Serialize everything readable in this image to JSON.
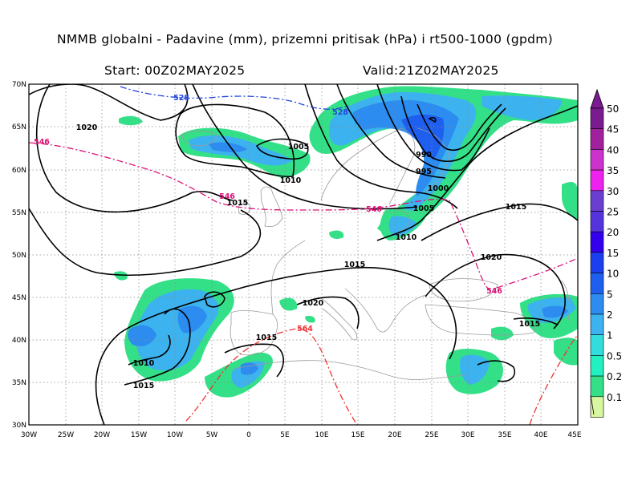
{
  "title": "NMMB globalni - Padavine (mm), prizemni pritisak (hPa) i rt500-1000 (gpdm)",
  "start": "Start: 00Z02MAY2025",
  "valid": "Valid:21Z02MAY2025",
  "lat_labels": [
    "70N",
    "65N",
    "60N",
    "55N",
    "50N",
    "45N",
    "40N",
    "35N",
    "30N"
  ],
  "lon_labels": [
    "30W",
    "25W",
    "20W",
    "15W",
    "10W",
    "5W",
    "0",
    "5E",
    "10E",
    "15E",
    "20E",
    "25E",
    "30E",
    "35E",
    "40E",
    "45E"
  ],
  "legend": {
    "levels": [
      "50",
      "45",
      "40",
      "35",
      "30",
      "25",
      "20",
      "15",
      "10",
      "5",
      "2",
      "1",
      "0.5",
      "0.2",
      "0.1"
    ],
    "colors": [
      "#7a1b8f",
      "#a0209e",
      "#cc33cc",
      "#ee22ee",
      "#6a3fd0",
      "#5533dd",
      "#3300ee",
      "#1b3ef0",
      "#1e5ff0",
      "#2c8cf0",
      "#3cb3ef",
      "#33dddd",
      "#22f0c0",
      "#33e088",
      "#d7f7a0"
    ]
  },
  "pressure_labels": [
    "1020",
    "1005",
    "1010",
    "1015",
    "990",
    "995",
    "1000",
    "1005",
    "1010",
    "1015",
    "1020",
    "1015",
    "1020",
    "1015",
    "1010",
    "1015",
    "1015"
  ],
  "thickness_labels": [
    "528",
    "528",
    "546",
    "546",
    "546",
    "546",
    "564"
  ],
  "colors": {
    "isobar": "#000000",
    "t528": "#2244dd",
    "t546": "#dd1177",
    "t564": "#ee3333",
    "coast": "#9a9a9a"
  }
}
